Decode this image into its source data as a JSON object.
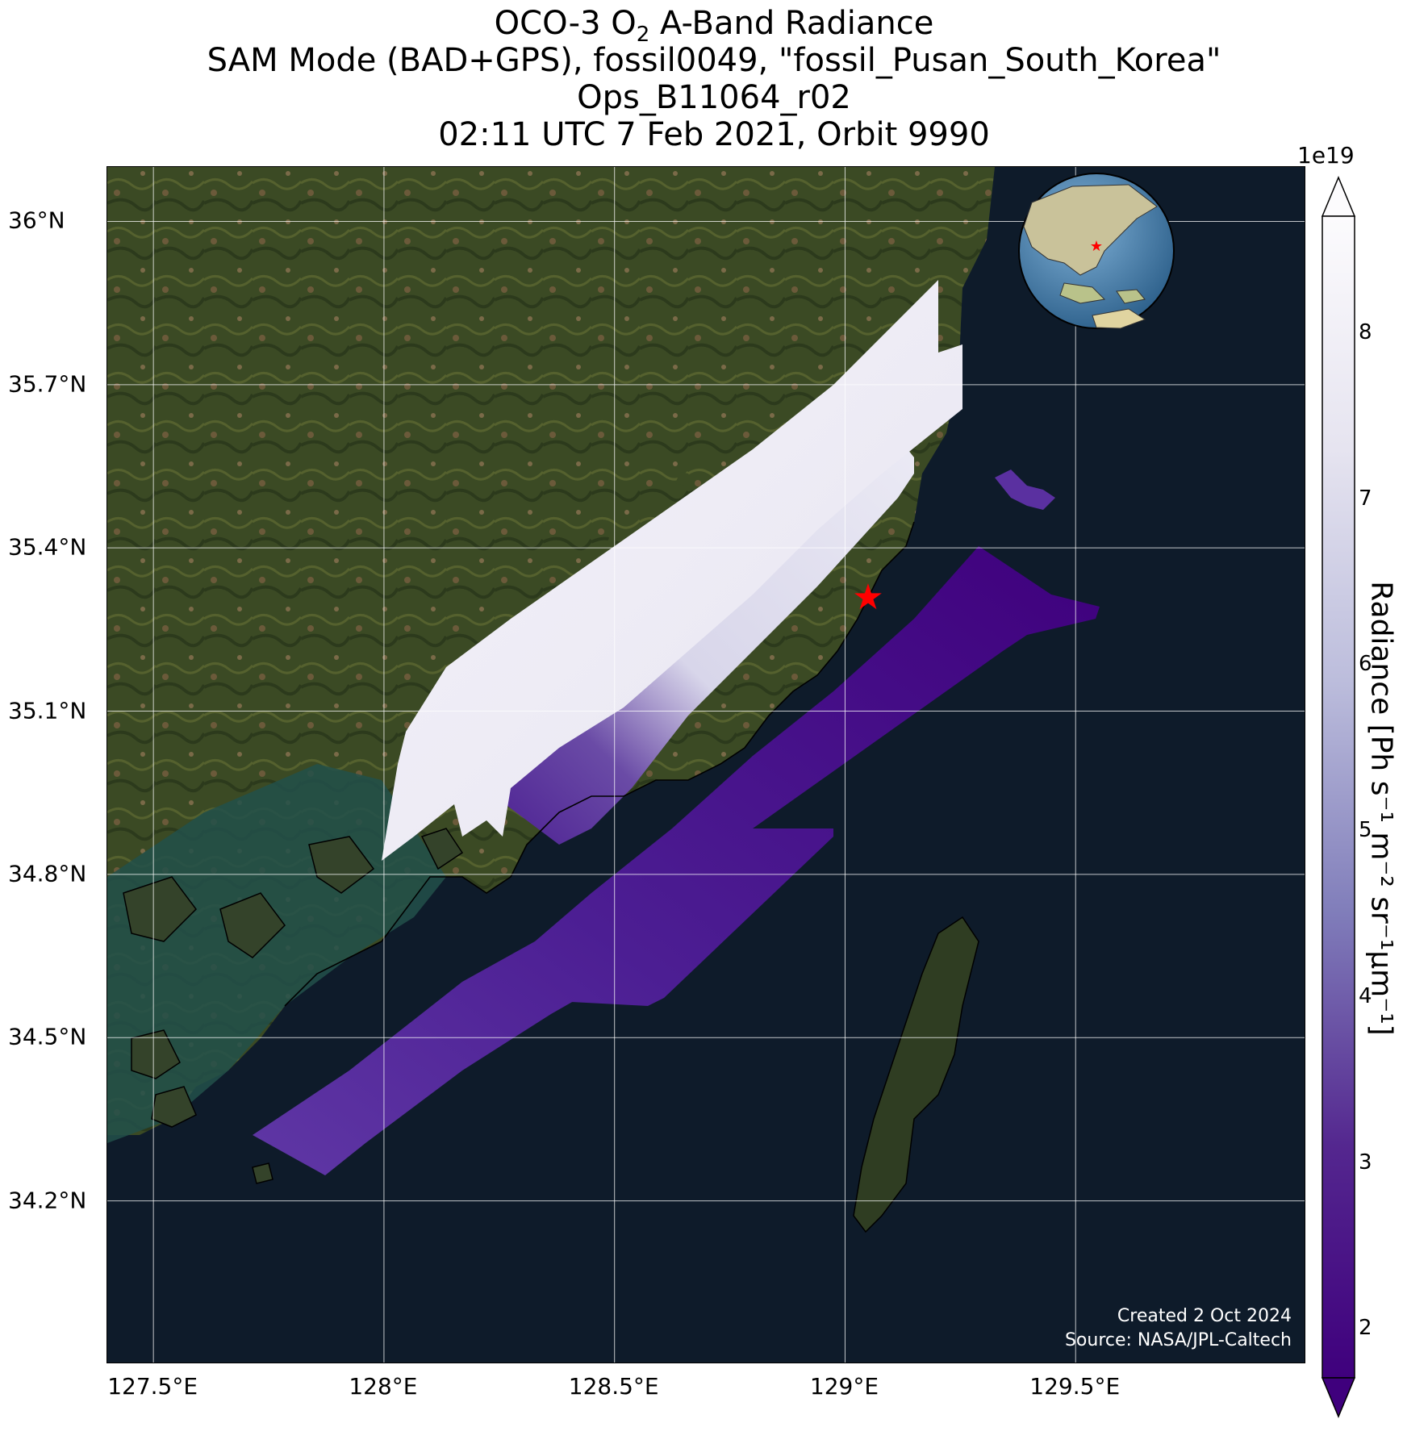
{
  "title": {
    "line1_pre": "OCO-3 O",
    "line1_sub": "2",
    "line1_post": " A-Band Radiance",
    "line2": "SAM Mode (BAD+GPS), fossil0049, \"fossil_Pusan_South_Korea\"",
    "line3": "Ops_B11064_r02",
    "line4": "02:11 UTC 7 Feb 2021, Orbit 9990"
  },
  "map": {
    "lat_ticks": [
      "36°N",
      "35.7°N",
      "35.4°N",
      "35.1°N",
      "34.8°N",
      "34.5°N",
      "34.2°N"
    ],
    "lon_ticks": [
      "127.5°E",
      "128°E",
      "128.5°E",
      "129°E",
      "129.5°E"
    ],
    "lat_values": [
      36.0,
      35.7,
      35.4,
      35.1,
      34.8,
      34.5,
      34.2
    ],
    "lon_values": [
      127.5,
      128.0,
      128.5,
      129.0,
      129.5
    ],
    "extent": {
      "lon_min": 127.4,
      "lon_max": 130.0,
      "lat_min": 33.9,
      "lat_max": 36.1
    },
    "target_marker": {
      "lat": 35.31,
      "lon": 129.05,
      "color": "#ff0000",
      "icon": "red-star-icon"
    },
    "credit_line1": "Created 2 Oct 2024",
    "credit_line2": "Source: NASA/JPL-Caltech"
  },
  "colorbar": {
    "label": "Radiance [Ph s⁻¹ m⁻² sr⁻¹μm⁻¹]",
    "multiplier": "1e19",
    "ticks": [
      "2",
      "3",
      "4",
      "5",
      "6",
      "7",
      "8"
    ],
    "tick_values": [
      2,
      3,
      4,
      5,
      6,
      7,
      8
    ],
    "range": [
      1.7,
      8.7
    ],
    "colormap": "Purples_r",
    "colors": {
      "low": "#3f007d",
      "mid": "#807dba",
      "high": "#fcfbfd"
    },
    "extend": "both"
  },
  "chart_data": {
    "type": "heatmap",
    "title": "OCO-3 O2 A-Band Radiance",
    "series": [
      {
        "swath": "north-west",
        "radiance_range_1e19": [
          7.0,
          8.5
        ],
        "surface": "land"
      },
      {
        "swath": "central",
        "radiance_range_1e19": [
          2.0,
          8.5
        ],
        "surface": "land and sea"
      },
      {
        "swath": "south-east",
        "radiance_range_1e19": [
          1.8,
          3.0
        ],
        "surface": "sea"
      }
    ]
  },
  "colors": {
    "ocean": "#0e1b2a",
    "coastal_water": "#22504a",
    "land": "#3b4a24",
    "grid": "#ffffff"
  }
}
